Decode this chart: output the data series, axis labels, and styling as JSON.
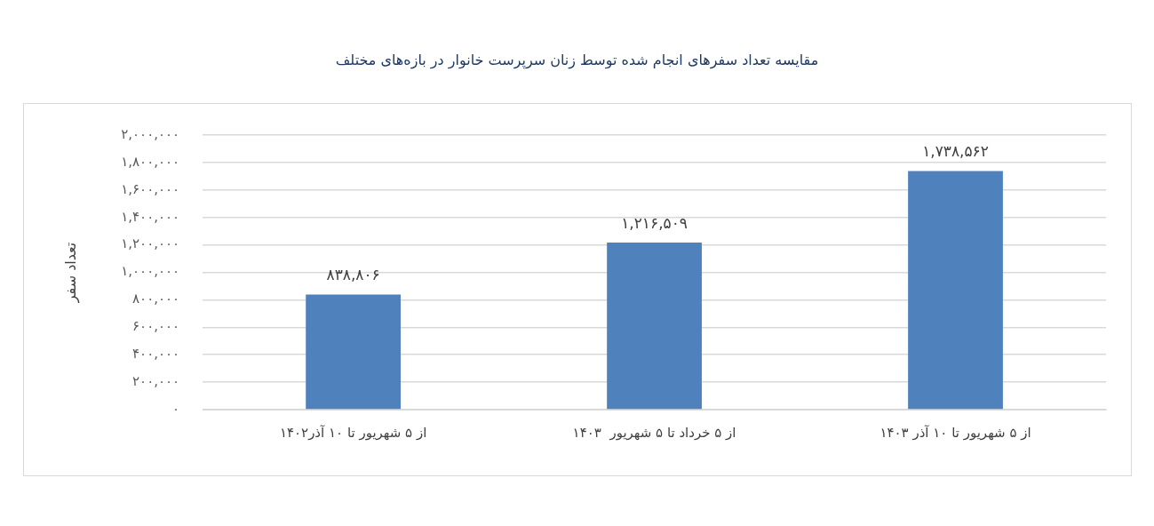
{
  "chart_data": {
    "type": "bar",
    "title": "مقایسه تعداد سفرهای انجام شده توسط زنان سرپرست خانوار در بازه‌های مختلف",
    "ylabel": "تعداد سفر",
    "categories": [
      "از ۵ شهریور تا ۱۰ آذر۱۴۰۲",
      "از ۵ خرداد تا ۵ شهریور  ۱۴۰۳",
      "از ۵ شهریور تا ۱۰ آذر ۱۴۰۳"
    ],
    "values": [
      838806,
      1216509,
      1738562
    ],
    "value_labels": [
      "۸۳۸,۸۰۶",
      "۱,۲۱۶,۵۰۹",
      "۱,۷۳۸,۵۶۲"
    ],
    "color": "#4f81bd",
    "ylim": [
      0,
      2000000
    ],
    "yticks": [
      {
        "value": 0,
        "label": "۰"
      },
      {
        "value": 200000,
        "label": "۲۰۰,۰۰۰"
      },
      {
        "value": 400000,
        "label": "۴۰۰,۰۰۰"
      },
      {
        "value": 600000,
        "label": "۶۰۰,۰۰۰"
      },
      {
        "value": 800000,
        "label": "۸۰۰,۰۰۰"
      },
      {
        "value": 1000000,
        "label": "۱,۰۰۰,۰۰۰"
      },
      {
        "value": 1200000,
        "label": "۱,۲۰۰,۰۰۰"
      },
      {
        "value": 1400000,
        "label": "۱,۴۰۰,۰۰۰"
      },
      {
        "value": 1600000,
        "label": "۱,۶۰۰,۰۰۰"
      },
      {
        "value": 1800000,
        "label": "۱,۸۰۰,۰۰۰"
      },
      {
        "value": 2000000,
        "label": "۲,۰۰۰,۰۰۰"
      }
    ],
    "grid": "y"
  }
}
